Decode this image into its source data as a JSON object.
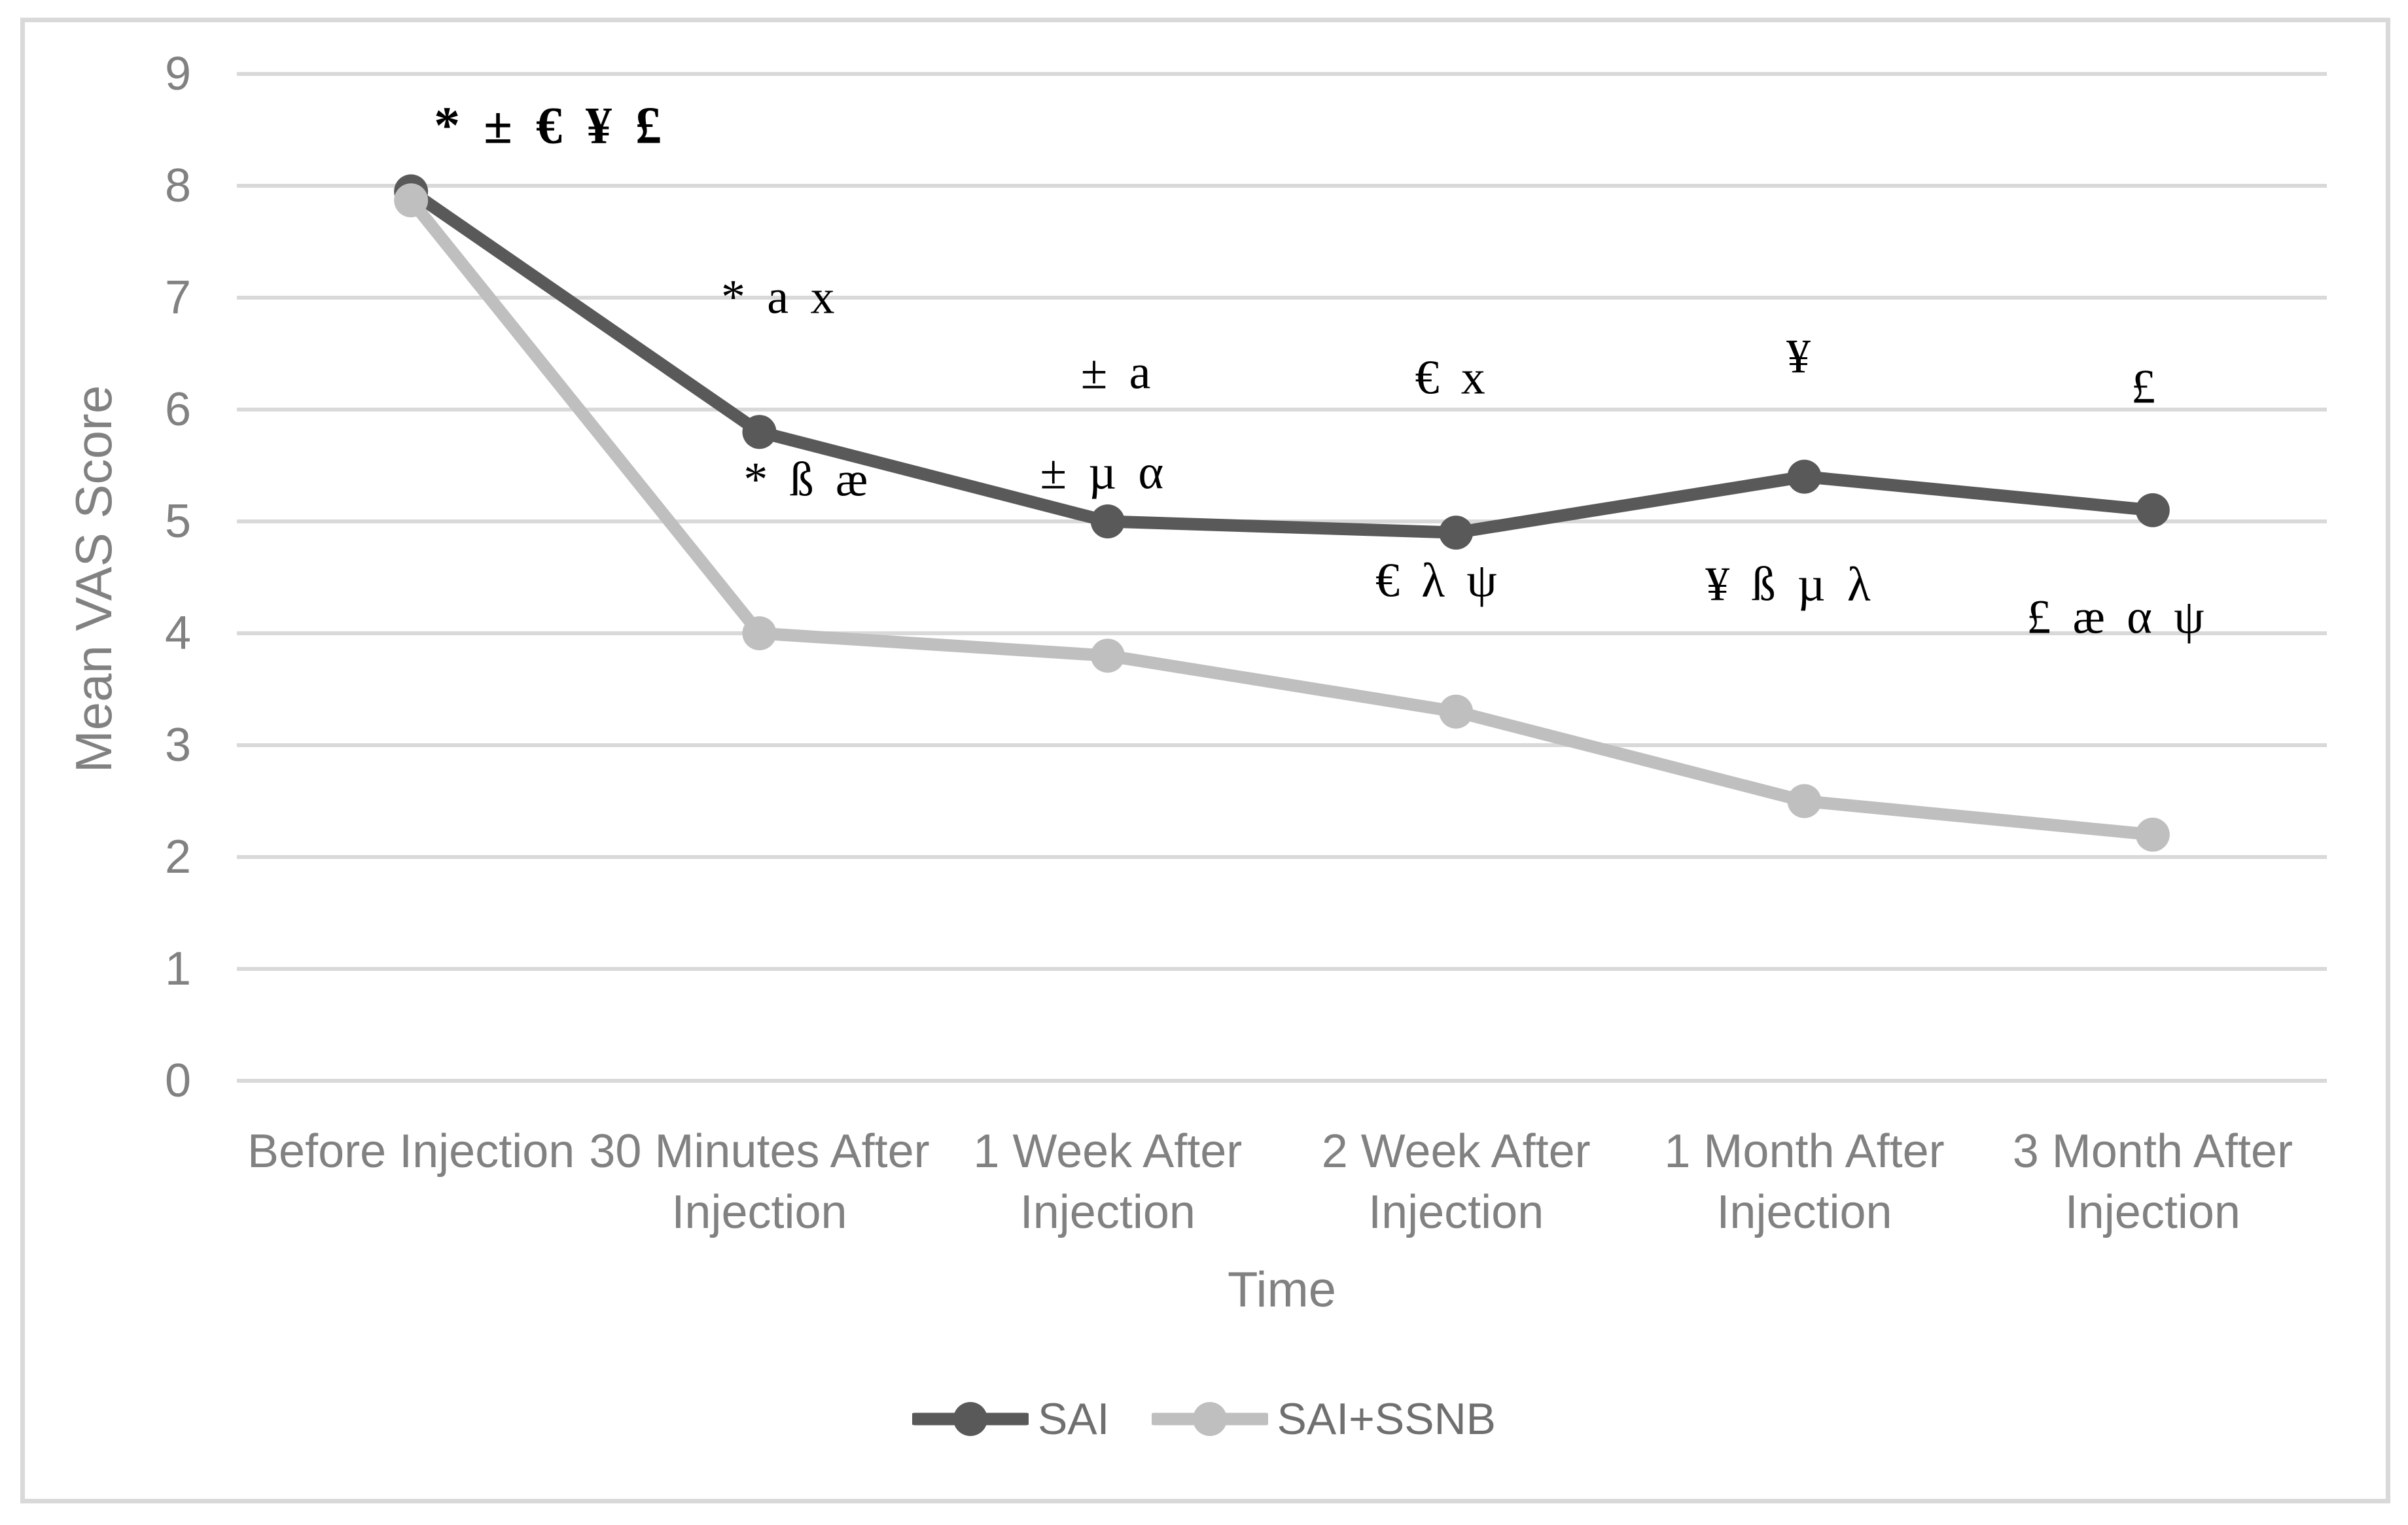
{
  "chart_data": {
    "type": "line",
    "title": "",
    "xlabel": "Time",
    "ylabel": "Mean VAS Score",
    "ylim": [
      0,
      9
    ],
    "yticks": [
      0,
      1,
      2,
      3,
      4,
      5,
      6,
      7,
      8,
      9
    ],
    "grid": true,
    "gridline_color": "#d9d9d9",
    "axis_text_color": "#818181",
    "legend_position": "bottom",
    "categories": [
      "Before Injection",
      "30 Minutes After\nInjection",
      "1 Week After\nInjection",
      "2 Week After\nInjection",
      "1 Month After\nInjection",
      "3 Month After\nInjection"
    ],
    "series": [
      {
        "name": "SAI",
        "color": "#595959",
        "values": [
          7.95,
          5.8,
          5.0,
          4.9,
          5.4,
          5.1
        ]
      },
      {
        "name": "SAI+SSNB",
        "color": "#bfbfbf",
        "values": [
          7.87,
          4.0,
          3.8,
          3.3,
          2.5,
          2.2
        ]
      }
    ],
    "annotations": [
      {
        "text": "* ± € ¥ £",
        "x": 0.4,
        "y": 8.53,
        "bold": true
      },
      {
        "text": "* a x",
        "x": 1.06,
        "y": 7.0,
        "bold": false
      },
      {
        "text": "* ß æ",
        "x": 1.14,
        "y": 5.37,
        "bold": false
      },
      {
        "text": "± a",
        "x": 2.03,
        "y": 6.33,
        "bold": false
      },
      {
        "text": "± µ α",
        "x": 1.99,
        "y": 5.43,
        "bold": false
      },
      {
        "text": "€ x",
        "x": 2.99,
        "y": 6.28,
        "bold": false
      },
      {
        "text": "€ λ ψ",
        "x": 2.95,
        "y": 4.47,
        "bold": false
      },
      {
        "text": "¥",
        "x": 3.99,
        "y": 6.47,
        "bold": false
      },
      {
        "text": "¥ ß µ λ",
        "x": 3.96,
        "y": 4.43,
        "bold": false
      },
      {
        "text": "£",
        "x": 4.98,
        "y": 6.2,
        "bold": false
      },
      {
        "text": "£ æ α ψ",
        "x": 4.9,
        "y": 4.14,
        "bold": false
      }
    ]
  }
}
